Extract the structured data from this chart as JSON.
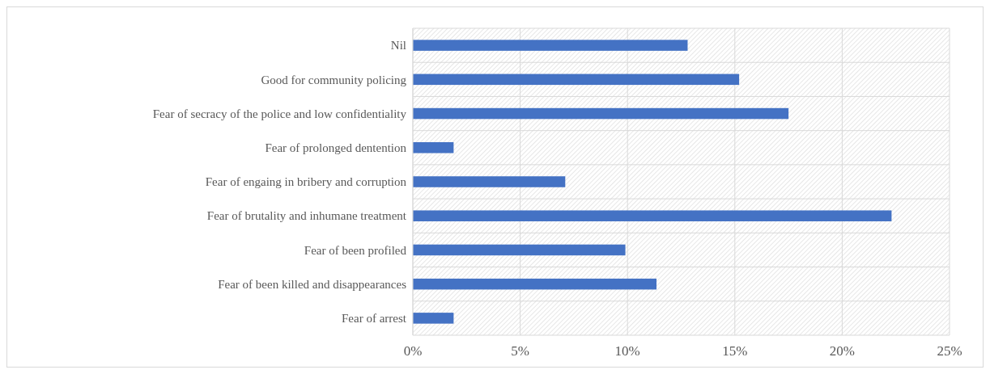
{
  "chart_data": {
    "type": "bar",
    "orientation": "horizontal",
    "categories": [
      "Nil",
      "Good for community policing",
      "Fear of secracy of the police and low confidentiality",
      "Fear of prolonged dentention",
      "Fear of engaing in bribery and corruption",
      "Fear of brutality and inhumane treatment",
      "Fear of been profiled",
      "Fear of been killed and disappearances",
      "Fear of arrest"
    ],
    "values": [
      12.8,
      15.2,
      17.5,
      1.9,
      7.1,
      22.3,
      9.9,
      11.35,
      1.9
    ],
    "color": "#4472c4",
    "xlim": [
      0,
      25
    ],
    "xticks": [
      {
        "value": 0,
        "label": "0%"
      },
      {
        "value": 5,
        "label": "5%"
      },
      {
        "value": 10,
        "label": "10%"
      },
      {
        "value": 15,
        "label": "15%"
      },
      {
        "value": 20,
        "label": "20%"
      },
      {
        "value": 25,
        "label": "25%"
      }
    ],
    "grid": true
  }
}
